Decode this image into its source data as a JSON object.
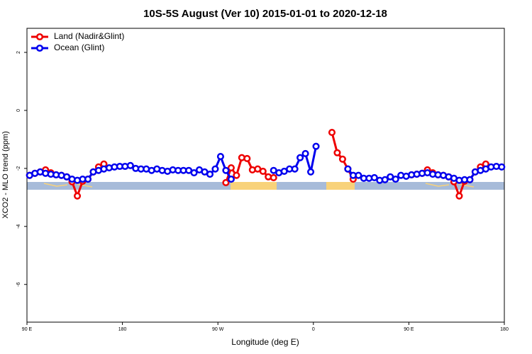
{
  "chart_data": {
    "type": "line",
    "title": "10S-5S August (Ver 10)   2015-01-01 to 2020-12-18",
    "x_label": "Longitude (deg E)",
    "y_label": "XCO2 - MLO trend (ppm)",
    "xlim": [
      90,
      540
    ],
    "ylim": [
      -7.3,
      2.83
    ],
    "xticks": [
      {
        "value": 90,
        "label": "90 E"
      },
      180,
      {
        "value": 270,
        "label": "90 W"
      },
      {
        "value": 360,
        "label": "0"
      },
      {
        "value": 450,
        "label": "90 E"
      },
      {
        "value": 540,
        "label": "180"
      }
    ],
    "yticks": [
      2,
      0,
      -2,
      -4,
      -6
    ],
    "legend": "top-left",
    "x": [
      92.5,
      97.5,
      102.5,
      107.5,
      112.5,
      117.5,
      122.5,
      127.5,
      132.5,
      137.5,
      142.5,
      147.5,
      152.5,
      157.5,
      162.5,
      167.5,
      172.5,
      177.5,
      182.5,
      187.5,
      192.5,
      197.5,
      202.5,
      207.5,
      212.5,
      217.5,
      222.5,
      227.5,
      232.5,
      237.5,
      242.5,
      247.5,
      252.5,
      257.5,
      262.5,
      267.5,
      272.5,
      277.5,
      282.5,
      287.5,
      292.5,
      297.5,
      302.5,
      307.5,
      312.5,
      317.5,
      322.5,
      327.5,
      332.5,
      337.5,
      342.5,
      347.5,
      352.5,
      357.5,
      362.5,
      367.5,
      372.5,
      377.5,
      382.5,
      387.5,
      392.5,
      397.5,
      402.5,
      407.5,
      412.5,
      417.5,
      422.5,
      427.5,
      432.5,
      437.5,
      442.5,
      447.5,
      452.5,
      457.5,
      462.5,
      467.5,
      472.5,
      477.5,
      482.5,
      487.5,
      492.5,
      497.5,
      502.5,
      507.5,
      512.5,
      517.5,
      522.5,
      527.5,
      532.5,
      537.5
    ],
    "series": [
      {
        "name": "Land (Nadir&Glint)",
        "color": "#ee0000",
        "values": [
          -2.24,
          -2.17,
          -2.12,
          -2.05,
          -2.15,
          -2.22,
          -2.24,
          -2.29,
          -2.46,
          -2.95,
          -2.44,
          -2.37,
          -2.12,
          -1.95,
          -1.85,
          null,
          null,
          null,
          null,
          null,
          null,
          null,
          null,
          null,
          null,
          null,
          null,
          null,
          null,
          null,
          null,
          null,
          null,
          null,
          null,
          null,
          null,
          -2.49,
          -1.98,
          -2.24,
          -1.63,
          -1.66,
          -2.05,
          -2.02,
          -2.1,
          -2.29,
          -2.32,
          null,
          null,
          null,
          null,
          null,
          null,
          null,
          null,
          null,
          null,
          -0.76,
          -1.46,
          -1.68,
          -2.02,
          -2.37,
          null,
          null,
          null,
          null,
          null,
          null,
          null,
          null,
          null,
          null,
          -2.22,
          -2.2,
          -2.17,
          -2.05,
          -2.15,
          -2.22,
          -2.24,
          -2.29,
          -2.46,
          -2.95,
          -2.44,
          -2.39,
          -2.12,
          -1.95,
          -1.85,
          null,
          null,
          null
        ]
      },
      {
        "name": "Ocean (Glint)",
        "color": "#0000ee",
        "values": [
          -2.24,
          -2.17,
          -2.12,
          -2.17,
          -2.2,
          -2.22,
          -2.24,
          -2.29,
          -2.37,
          -2.41,
          -2.37,
          -2.37,
          -2.12,
          -2.07,
          -2.02,
          -1.98,
          -1.95,
          -1.93,
          -1.93,
          -1.9,
          -2,
          -2.02,
          -2.02,
          -2.07,
          -2.02,
          -2.07,
          -2.1,
          -2.05,
          -2.07,
          -2.07,
          -2.07,
          -2.15,
          -2.05,
          -2.12,
          -2.2,
          -2.02,
          -1.59,
          -2.07,
          -2.37,
          null,
          null,
          null,
          null,
          null,
          null,
          null,
          -2.07,
          -2.15,
          -2.1,
          -2.02,
          -2.02,
          -1.63,
          -1.49,
          -2.12,
          -1.24,
          null,
          null,
          null,
          null,
          null,
          -2.02,
          -2.24,
          -2.24,
          -2.34,
          -2.34,
          -2.32,
          -2.41,
          -2.39,
          -2.29,
          -2.37,
          -2.24,
          -2.27,
          -2.22,
          -2.2,
          -2.17,
          -2.15,
          -2.2,
          -2.22,
          -2.24,
          -2.29,
          -2.34,
          -2.41,
          -2.39,
          -2.39,
          -2.12,
          -2.07,
          -2.02,
          -1.95,
          -1.93,
          -1.95
        ]
      }
    ]
  }
}
